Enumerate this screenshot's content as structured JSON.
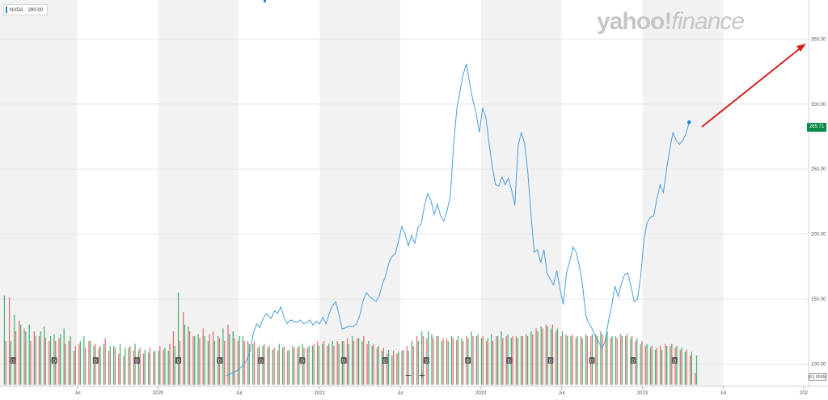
{
  "ticker": {
    "symbol": "NVDA",
    "value": "280.00"
  },
  "logo": {
    "yahoo": "yahoo",
    "slash": "!",
    "finance": "finance"
  },
  "last_price_label": "285.71",
  "volume_label": "63.956M",
  "zoom": {
    "minus": "−",
    "plus": "+"
  },
  "colors": {
    "line": "#4a9fd8",
    "vol_up": "#2fa760",
    "vol_down": "#e05c5c",
    "band": "#f2f2f2",
    "arrow": "#d32020",
    "dividend_marker": "#5a5a5a",
    "price_tag": "#0a8a46"
  },
  "chart_data": {
    "type": "line",
    "series": [
      {
        "values": [
          [
            2020.42,
            91
          ],
          [
            2020.46,
            93
          ],
          [
            2020.5,
            96
          ],
          [
            2020.54,
            101
          ],
          [
            2020.57,
            110
          ],
          [
            2020.59,
            124
          ],
          [
            2020.61,
            131
          ],
          [
            2020.63,
            128
          ],
          [
            2020.65,
            135
          ],
          [
            2020.67,
            139
          ],
          [
            2020.7,
            135
          ],
          [
            2020.72,
            141
          ],
          [
            2020.74,
            139
          ],
          [
            2020.76,
            144
          ],
          [
            2020.78,
            136
          ],
          [
            2020.8,
            131
          ],
          [
            2020.82,
            134
          ],
          [
            2020.84,
            133
          ],
          [
            2020.86,
            132
          ],
          [
            2020.88,
            134
          ],
          [
            2020.9,
            131
          ],
          [
            2020.92,
            132
          ],
          [
            2020.94,
            134
          ],
          [
            2020.96,
            130
          ],
          [
            2020.98,
            133
          ],
          [
            2021.0,
            131
          ],
          [
            2021.02,
            136
          ],
          [
            2021.04,
            131
          ],
          [
            2021.06,
            139
          ],
          [
            2021.08,
            145
          ],
          [
            2021.1,
            148
          ],
          [
            2021.12,
            138
          ],
          [
            2021.14,
            127
          ],
          [
            2021.16,
            128
          ],
          [
            2021.18,
            129
          ],
          [
            2021.21,
            129
          ],
          [
            2021.23,
            131
          ],
          [
            2021.25,
            138
          ],
          [
            2021.27,
            149
          ],
          [
            2021.29,
            155
          ],
          [
            2021.31,
            152
          ],
          [
            2021.33,
            150
          ],
          [
            2021.35,
            148
          ],
          [
            2021.37,
            153
          ],
          [
            2021.39,
            162
          ],
          [
            2021.41,
            168
          ],
          [
            2021.43,
            178
          ],
          [
            2021.45,
            183
          ],
          [
            2021.47,
            185
          ],
          [
            2021.49,
            195
          ],
          [
            2021.51,
            206
          ],
          [
            2021.53,
            200
          ],
          [
            2021.55,
            191
          ],
          [
            2021.57,
            199
          ],
          [
            2021.59,
            193
          ],
          [
            2021.61,
            205
          ],
          [
            2021.63,
            208
          ],
          [
            2021.65,
            222
          ],
          [
            2021.67,
            231
          ],
          [
            2021.69,
            226
          ],
          [
            2021.71,
            215
          ],
          [
            2021.73,
            223
          ],
          [
            2021.75,
            214
          ],
          [
            2021.77,
            210
          ],
          [
            2021.79,
            218
          ],
          [
            2021.81,
            229
          ],
          [
            2021.83,
            268
          ],
          [
            2021.85,
            296
          ],
          [
            2021.87,
            310
          ],
          [
            2021.89,
            323
          ],
          [
            2021.91,
            331
          ],
          [
            2021.93,
            316
          ],
          [
            2021.95,
            303
          ],
          [
            2021.97,
            293
          ],
          [
            2021.99,
            278
          ],
          [
            2022.01,
            297
          ],
          [
            2022.03,
            290
          ],
          [
            2022.05,
            270
          ],
          [
            2022.07,
            252
          ],
          [
            2022.09,
            238
          ],
          [
            2022.11,
            237
          ],
          [
            2022.13,
            244
          ],
          [
            2022.15,
            238
          ],
          [
            2022.17,
            243
          ],
          [
            2022.19,
            234
          ],
          [
            2022.21,
            222
          ],
          [
            2022.23,
            268
          ],
          [
            2022.25,
            278
          ],
          [
            2022.27,
            270
          ],
          [
            2022.29,
            248
          ],
          [
            2022.31,
            215
          ],
          [
            2022.33,
            186
          ],
          [
            2022.35,
            188
          ],
          [
            2022.37,
            178
          ],
          [
            2022.39,
            188
          ],
          [
            2022.41,
            170
          ],
          [
            2022.43,
            165
          ],
          [
            2022.45,
            161
          ],
          [
            2022.47,
            172
          ],
          [
            2022.49,
            158
          ],
          [
            2022.51,
            146
          ],
          [
            2022.53,
            170
          ],
          [
            2022.55,
            179
          ],
          [
            2022.57,
            190
          ],
          [
            2022.59,
            186
          ],
          [
            2022.61,
            175
          ],
          [
            2022.63,
            160
          ],
          [
            2022.65,
            137
          ],
          [
            2022.67,
            131
          ],
          [
            2022.69,
            127
          ],
          [
            2022.71,
            121
          ],
          [
            2022.73,
            117
          ],
          [
            2022.75,
            112
          ],
          [
            2022.77,
            118
          ],
          [
            2022.79,
            133
          ],
          [
            2022.81,
            145
          ],
          [
            2022.83,
            160
          ],
          [
            2022.85,
            152
          ],
          [
            2022.87,
            162
          ],
          [
            2022.89,
            169
          ],
          [
            2022.91,
            170
          ],
          [
            2022.93,
            160
          ],
          [
            2022.95,
            148
          ],
          [
            2022.97,
            150
          ],
          [
            2022.99,
            168
          ],
          [
            2023.01,
            196
          ],
          [
            2023.03,
            209
          ],
          [
            2023.05,
            213
          ],
          [
            2023.07,
            214
          ],
          [
            2023.09,
            227
          ],
          [
            2023.11,
            238
          ],
          [
            2023.13,
            232
          ],
          [
            2023.15,
            250
          ],
          [
            2023.17,
            265
          ],
          [
            2023.19,
            278
          ],
          [
            2023.21,
            272
          ],
          [
            2023.23,
            269
          ],
          [
            2023.25,
            272
          ],
          [
            2023.27,
            277
          ],
          [
            2023.29,
            286
          ]
        ]
      }
    ],
    "volume": [
      [
        1,
        0.92,
        0.45
      ],
      [
        0,
        0.9,
        0.45
      ],
      [
        1,
        0.72,
        0.55
      ],
      [
        0,
        0.66,
        0.62
      ],
      [
        0,
        0.58,
        0.55
      ],
      [
        1,
        0.62,
        0.45
      ],
      [
        0,
        0.55,
        0.5
      ],
      [
        0,
        0.5,
        0.55
      ],
      [
        1,
        0.6,
        0.48
      ],
      [
        0,
        0.45,
        0.5
      ],
      [
        1,
        0.52,
        0.45
      ],
      [
        0,
        0.48,
        0.52
      ],
      [
        1,
        0.58,
        0.42
      ],
      [
        0,
        0.45,
        0.5
      ],
      [
        1,
        0.35,
        0.4
      ],
      [
        0,
        0.42,
        0.45
      ],
      [
        1,
        0.5,
        0.38
      ],
      [
        0,
        0.45,
        0.45
      ],
      [
        1,
        0.4,
        0.42
      ],
      [
        0,
        0.38,
        0.4
      ],
      [
        1,
        0.42,
        0.48
      ],
      [
        0,
        0.35,
        0.4
      ],
      [
        1,
        0.4,
        0.38
      ],
      [
        0,
        0.32,
        0.42
      ],
      [
        0,
        0.3,
        0.38
      ],
      [
        1,
        0.38,
        0.4
      ],
      [
        0,
        0.35,
        0.42
      ],
      [
        1,
        0.35,
        0.38
      ],
      [
        0,
        0.32,
        0.36
      ],
      [
        1,
        0.33,
        0.38
      ],
      [
        0,
        0.34,
        0.35
      ],
      [
        1,
        0.35,
        0.4
      ],
      [
        0,
        0.36,
        0.38
      ],
      [
        1,
        0.35,
        0.42
      ],
      [
        0,
        0.55,
        0.4
      ],
      [
        1,
        0.95,
        0.45
      ],
      [
        0,
        0.75,
        0.62
      ],
      [
        1,
        0.6,
        0.55
      ],
      [
        0,
        0.5,
        0.5
      ],
      [
        1,
        0.52,
        0.48
      ],
      [
        0,
        0.58,
        0.5
      ],
      [
        1,
        0.45,
        0.52
      ],
      [
        0,
        0.55,
        0.45
      ],
      [
        1,
        0.5,
        0.48
      ],
      [
        1,
        0.58,
        0.45
      ],
      [
        0,
        0.62,
        0.52
      ],
      [
        1,
        0.55,
        0.48
      ],
      [
        0,
        0.45,
        0.5
      ],
      [
        1,
        0.5,
        0.45
      ],
      [
        0,
        0.45,
        0.42
      ],
      [
        1,
        0.42,
        0.45
      ],
      [
        0,
        0.38,
        0.4
      ],
      [
        1,
        0.4,
        0.42
      ],
      [
        0,
        0.38,
        0.4
      ],
      [
        1,
        0.36,
        0.38
      ],
      [
        0,
        0.35,
        0.42
      ],
      [
        1,
        0.38,
        0.4
      ],
      [
        0,
        0.35,
        0.36
      ],
      [
        1,
        0.4,
        0.38
      ],
      [
        0,
        0.38,
        0.4
      ],
      [
        1,
        0.42,
        0.38
      ],
      [
        0,
        0.38,
        0.4
      ],
      [
        1,
        0.4,
        0.42
      ],
      [
        0,
        0.45,
        0.4
      ],
      [
        1,
        0.42,
        0.45
      ],
      [
        0,
        0.4,
        0.42
      ],
      [
        1,
        0.45,
        0.4
      ],
      [
        0,
        0.45,
        0.42
      ],
      [
        1,
        0.45,
        0.45
      ],
      [
        0,
        0.48,
        0.42
      ],
      [
        1,
        0.5,
        0.45
      ],
      [
        0,
        0.48,
        0.48
      ],
      [
        1,
        0.45,
        0.5
      ],
      [
        0,
        0.42,
        0.45
      ],
      [
        1,
        0.4,
        0.42
      ],
      [
        0,
        0.38,
        0.4
      ],
      [
        1,
        0.35,
        0.38
      ],
      [
        0,
        0.32,
        0.36
      ],
      [
        1,
        0.3,
        0.35
      ],
      [
        0,
        0.32,
        0.34
      ],
      [
        1,
        0.35,
        0.36
      ],
      [
        0,
        0.4,
        0.35
      ],
      [
        1,
        0.45,
        0.4
      ],
      [
        0,
        0.5,
        0.45
      ],
      [
        1,
        0.55,
        0.5
      ],
      [
        0,
        0.48,
        0.55
      ],
      [
        1,
        0.52,
        0.48
      ],
      [
        0,
        0.5,
        0.5
      ],
      [
        1,
        0.45,
        0.48
      ],
      [
        0,
        0.48,
        0.45
      ],
      [
        1,
        0.5,
        0.48
      ],
      [
        0,
        0.46,
        0.5
      ],
      [
        1,
        0.48,
        0.45
      ],
      [
        0,
        0.5,
        0.48
      ],
      [
        1,
        0.55,
        0.5
      ],
      [
        0,
        0.5,
        0.52
      ],
      [
        1,
        0.48,
        0.5
      ],
      [
        0,
        0.45,
        0.48
      ],
      [
        1,
        0.52,
        0.45
      ],
      [
        0,
        0.5,
        0.5
      ],
      [
        1,
        0.55,
        0.48
      ],
      [
        0,
        0.5,
        0.52
      ],
      [
        1,
        0.48,
        0.5
      ],
      [
        0,
        0.5,
        0.48
      ],
      [
        1,
        0.5,
        0.5
      ],
      [
        0,
        0.52,
        0.5
      ],
      [
        1,
        0.55,
        0.52
      ],
      [
        0,
        0.58,
        0.55
      ],
      [
        1,
        0.6,
        0.58
      ],
      [
        0,
        0.62,
        0.6
      ],
      [
        1,
        0.58,
        0.62
      ],
      [
        0,
        0.55,
        0.58
      ],
      [
        0,
        0.5,
        0.55
      ],
      [
        0,
        0.52,
        0.5
      ],
      [
        1,
        0.5,
        0.52
      ],
      [
        0,
        0.48,
        0.5
      ],
      [
        0,
        0.5,
        0.48
      ],
      [
        1,
        0.52,
        0.5
      ],
      [
        0,
        0.5,
        0.52
      ],
      [
        0,
        0.52,
        0.5
      ],
      [
        1,
        0.55,
        0.52
      ],
      [
        0,
        0.5,
        0.55
      ],
      [
        0,
        0.48,
        0.5
      ],
      [
        1,
        0.5,
        0.48
      ],
      [
        0,
        0.52,
        0.5
      ],
      [
        0,
        0.5,
        0.52
      ],
      [
        1,
        0.48,
        0.5
      ],
      [
        0,
        0.45,
        0.48
      ],
      [
        1,
        0.42,
        0.45
      ],
      [
        0,
        0.4,
        0.42
      ],
      [
        0,
        0.38,
        0.4
      ],
      [
        1,
        0.36,
        0.38
      ],
      [
        0,
        0.4,
        0.36
      ],
      [
        0,
        0.42,
        0.4
      ],
      [
        1,
        0.4,
        0.42
      ],
      [
        0,
        0.38,
        0.4
      ],
      [
        0,
        0.36,
        0.38
      ],
      [
        1,
        0.34,
        0.36
      ],
      [
        0,
        0.3,
        0.34
      ],
      [
        0,
        0.12,
        0.3
      ]
    ],
    "dividend_markers": [
      "D",
      "D",
      "D",
      "D",
      "D",
      "D",
      "D",
      "D",
      "D",
      "D",
      "D",
      "D",
      "D",
      "D",
      "D",
      "D",
      "D"
    ],
    "y_ticks": [
      100,
      150,
      200,
      250,
      300,
      350
    ],
    "y_tick_labels": [
      "100.00",
      "150.00",
      "200.00",
      "250.00",
      "300.00",
      "350.00"
    ],
    "x_ticks": [
      {
        "t": 2019.5,
        "label": "Jul"
      },
      {
        "t": 2020.0,
        "label": "2020"
      },
      {
        "t": 2020.5,
        "label": "Jul"
      },
      {
        "t": 2021.0,
        "label": "2021"
      },
      {
        "t": 2021.5,
        "label": "Jul"
      },
      {
        "t": 2022.0,
        "label": "2022"
      },
      {
        "t": 2022.5,
        "label": "Jul"
      },
      {
        "t": 2023.0,
        "label": "2023"
      },
      {
        "t": 2023.5,
        "label": "Jul"
      },
      {
        "t": 2024.0,
        "label": "202"
      }
    ],
    "ylim": [
      83,
      380
    ],
    "xlim": [
      2019.02,
      2024.03
    ],
    "grid": true
  }
}
